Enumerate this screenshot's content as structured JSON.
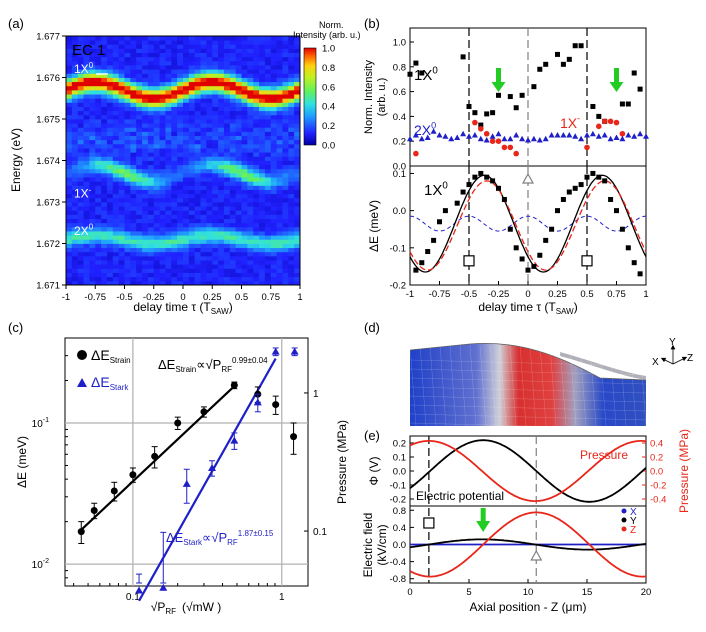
{
  "colors": {
    "black": "#000000",
    "blue": "#1f1fc8",
    "red": "#e8261a",
    "green": "#22cc22",
    "gray": "#808080",
    "grid": "#b0b0b0"
  },
  "panels": {
    "a": {
      "label": "(a)",
      "title": "EC 1",
      "ylabel": "Energy (eV)",
      "xlabel_main": "delay time τ (T",
      "xlabel_sub": "SAW",
      "xlabel_end": ")",
      "xlim": [
        -1,
        1
      ],
      "ylim": [
        1.671,
        1.677
      ],
      "xticks": [
        "-1",
        "-0.75",
        "-0.5",
        "-0.25",
        "0",
        "0.25",
        "0.5",
        "0.75",
        "1"
      ],
      "yticks": [
        "1.671",
        "1.672",
        "1.673",
        "1.674",
        "1.675",
        "1.676",
        "1.677"
      ],
      "colorbar_title_1": "Norm.",
      "colorbar_title_2": "Intensity (arb. u.)",
      "colorbar_ticks": [
        "1.0",
        "0.8",
        "0.6",
        "0.4",
        "0.2",
        "0.0"
      ],
      "line_labels": [
        {
          "base": "1X",
          "sup": "0",
          "energy": 1.6762
        },
        {
          "base": "1X",
          "sup": "-",
          "energy": 1.6732
        },
        {
          "base": "2X",
          "sup": "0",
          "energy": 1.6723
        }
      ]
    },
    "b": {
      "label": "(b)",
      "top": {
        "ylabel_1": "Norm. Intensity",
        "ylabel_2": "(arb. u.)",
        "ylim": [
          0.0,
          1.0
        ],
        "yticks": [
          "0.0",
          "0.2",
          "0.4",
          "0.6",
          "0.8",
          "1.0"
        ],
        "labels": [
          {
            "base": "1X",
            "sup": "0"
          },
          {
            "base": "2X",
            "sup": "0"
          },
          {
            "base": "1X",
            "sup": "-"
          }
        ]
      },
      "bottom": {
        "ylabel": "ΔE (meV)",
        "ylim": [
          -0.2,
          0.12
        ],
        "yticks": [
          "-0.2",
          "-0.1",
          "0.0",
          "0.1"
        ],
        "xticks": [
          "-1",
          "-0.75",
          "-0.5",
          "-0.25",
          "0",
          "0.25",
          "0.5",
          "0.75",
          "1"
        ],
        "label": {
          "base": "1X",
          "sup": "0"
        },
        "xlabel_main": "delay time τ (T",
        "xlabel_sub": "SAW",
        "xlabel_end": ")"
      }
    },
    "c": {
      "label": "(c)",
      "ylabel": "ΔE (meV)",
      "y2label": "Pressure (MPa)",
      "xlabel_main": "√P",
      "xlabel_sub": "RF",
      "xlabel_unit": "(√mW )",
      "xticks": [
        "0.1",
        "1"
      ],
      "yticks": [
        "10",
        "10",
        "10"
      ],
      "yticks_exp": [
        "-2",
        "-1",
        "0"
      ],
      "y2ticks": [
        "0.1",
        "1"
      ],
      "legend": [
        {
          "main": "ΔE",
          "sub": "Strain"
        },
        {
          "main": "ΔE",
          "sub": "Stark"
        }
      ],
      "fit_strain": {
        "main": "ΔE",
        "sub": "Strain",
        "prop": "∝√P",
        "sub2": "RF",
        "exp": "0.99±0.04"
      },
      "fit_stark": {
        "main": "ΔE",
        "sub": "Stark",
        "prop": "∝√P",
        "sub2": "RF",
        "exp": "1.87±0.15"
      }
    },
    "d": {
      "label": "(d)",
      "axes": [
        "Y",
        "X",
        "Z"
      ]
    },
    "e": {
      "label": "(e)",
      "top": {
        "ylabel": "Φ (V)",
        "y2label": "Pressure (MPa)",
        "yticks": [
          "0.2",
          "0.1",
          "0.0",
          "-0.1",
          "-0.2"
        ],
        "y2ticks": [
          "0.4",
          "0.2",
          "0.0",
          "-0.2",
          "-0.4"
        ],
        "pressure_label": "Pressure",
        "potential_label": "Electric potential"
      },
      "bottom": {
        "ylabel_1": "Electric field",
        "ylabel_2": "(kV/cm)",
        "yticks": [
          "0.8",
          "0.4",
          "0.0",
          "-0.4",
          "-0.8"
        ],
        "xticks": [
          "0",
          "5",
          "10",
          "15",
          "20"
        ],
        "legend": [
          "X",
          "Y",
          "Z"
        ],
        "xlabel": "Axial position - Z (μm)"
      }
    }
  },
  "chart_data": [
    {
      "type": "heatmap",
      "panel": "a",
      "title": "EC 1",
      "xlabel": "delay time τ (TSAW)",
      "ylabel": "Energy (eV)",
      "xlim": [
        -1,
        1
      ],
      "ylim": [
        1.671,
        1.677
      ],
      "zlim": [
        0.0,
        1.0
      ],
      "bands": [
        {
          "name": "1X0",
          "energy": 1.6757,
          "amplitude": 0.95,
          "modulation_eV": 0.0002
        },
        {
          "name": "1X-",
          "energy": 1.6737,
          "amplitude": 0.45,
          "modulation_eV": 0.0002
        },
        {
          "name": "2X0",
          "energy": 1.6721,
          "amplitude": 0.35,
          "modulation_eV": 0.0001
        }
      ]
    },
    {
      "type": "scatter",
      "panel": "b-top",
      "xlabel": "delay time τ (TSAW)",
      "ylabel": "Norm. Intensity (arb. u.)",
      "xlim": [
        -1,
        1
      ],
      "ylim": [
        0,
        1
      ],
      "series": [
        {
          "name": "1X0",
          "color": "#000000",
          "x": [
            -1.0,
            -0.95,
            -0.9,
            -0.55,
            -0.5,
            -0.45,
            -0.4,
            -0.35,
            -0.3,
            -0.25,
            -0.15,
            -0.1,
            -0.05,
            0.05,
            0.1,
            0.15,
            0.25,
            0.3,
            0.35,
            0.4,
            0.45,
            0.55,
            0.6,
            0.65,
            0.8,
            0.85,
            0.9,
            0.95
          ],
          "y": [
            0.74,
            0.83,
            0.75,
            0.88,
            0.48,
            0.43,
            0.33,
            0.42,
            0.43,
            0.57,
            0.56,
            0.47,
            0.57,
            0.64,
            0.78,
            0.82,
            0.9,
            0.82,
            0.86,
            0.97,
            0.97,
            0.48,
            0.4,
            0.36,
            0.5,
            0.5,
            0.75,
            0.62
          ]
        },
        {
          "name": "1X-",
          "color": "#e8261a",
          "x": [
            -0.95,
            -0.45,
            -0.4,
            -0.35,
            -0.3,
            -0.25,
            -0.2,
            -0.15,
            -0.1,
            0.5,
            0.6,
            0.65,
            0.7,
            0.75,
            0.8
          ],
          "y": [
            0.1,
            0.35,
            0.3,
            0.26,
            0.2,
            0.2,
            0.15,
            0.15,
            0.1,
            0.15,
            0.32,
            0.36,
            0.36,
            0.35,
            0.26
          ]
        },
        {
          "name": "2X0",
          "color": "#1f1fc8",
          "x": [
            -1.0,
            -0.95,
            -0.9,
            -0.85,
            -0.8,
            -0.75,
            -0.7,
            -0.65,
            -0.6,
            -0.55,
            -0.5,
            -0.45,
            -0.4,
            -0.35,
            -0.3,
            -0.25,
            -0.2,
            -0.15,
            -0.1,
            -0.05,
            0.0,
            0.05,
            0.1,
            0.15,
            0.2,
            0.25,
            0.3,
            0.35,
            0.4,
            0.45,
            0.5,
            0.55,
            0.6,
            0.65,
            0.7,
            0.75,
            0.8,
            0.85,
            0.9,
            0.95,
            1.0
          ],
          "y": [
            0.22,
            0.25,
            0.22,
            0.23,
            0.28,
            0.25,
            0.24,
            0.22,
            0.23,
            0.26,
            0.24,
            0.25,
            0.22,
            0.21,
            0.24,
            0.26,
            0.22,
            0.22,
            0.25,
            0.22,
            0.21,
            0.22,
            0.21,
            0.22,
            0.25,
            0.25,
            0.25,
            0.25,
            0.24,
            0.22,
            0.25,
            0.26,
            0.24,
            0.25,
            0.22,
            0.23,
            0.22,
            0.25,
            0.24,
            0.26,
            0.24
          ]
        }
      ]
    },
    {
      "type": "line",
      "panel": "b-bottom",
      "xlabel": "delay time τ (TSAW)",
      "ylabel": "ΔE (meV)",
      "xlim": [
        -1,
        1
      ],
      "ylim": [
        -0.2,
        0.12
      ],
      "series": [
        {
          "name": "1X0 data",
          "style": "squares",
          "x": [
            -0.95,
            -0.9,
            -0.85,
            -0.8,
            -0.75,
            -0.7,
            -0.6,
            -0.55,
            -0.5,
            -0.45,
            -0.4,
            -0.35,
            -0.3,
            -0.25,
            -0.2,
            -0.15,
            -0.1,
            -0.05,
            0.0,
            0.05,
            0.1,
            0.15,
            0.2,
            0.25,
            0.3,
            0.35,
            0.4,
            0.45,
            0.5,
            0.55,
            0.6,
            0.65,
            0.7,
            0.75,
            0.8,
            0.85,
            0.9,
            0.95
          ],
          "y": [
            -0.16,
            -0.14,
            -0.11,
            -0.08,
            -0.03,
            0.0,
            0.02,
            0.05,
            0.07,
            0.09,
            0.1,
            0.09,
            0.08,
            0.06,
            0.03,
            -0.05,
            -0.1,
            -0.13,
            -0.16,
            -0.15,
            -0.12,
            -0.08,
            -0.05,
            0.0,
            0.03,
            0.05,
            0.06,
            0.07,
            0.09,
            0.1,
            0.09,
            0.08,
            0.03,
            0.0,
            -0.05,
            -0.1,
            -0.14,
            -0.17
          ]
        },
        {
          "name": "sine fit",
          "color": "#000000",
          "amplitude": 0.13,
          "offset": -0.035,
          "period": 1.0,
          "phase_max_at": 0.63
        },
        {
          "name": "model (dashed)",
          "color": "#e8261a",
          "amplitude": 0.12,
          "offset": -0.04,
          "period": 1.0,
          "phase_max_at": 0.65
        },
        {
          "name": "Stark (dashed)",
          "color": "#1f1fc8",
          "amplitude": 0.02,
          "offset": -0.035,
          "period": 0.5,
          "phase_max_at": 0.0
        }
      ],
      "markers": {
        "vertical_dashed": [
          -0.5,
          0.0,
          0.5
        ],
        "squares_at": [
          [
            -0.5,
            -0.135
          ],
          [
            0.5,
            -0.135
          ]
        ],
        "triangle_at": [
          0.0,
          0.085
        ],
        "green_arrows_x": [
          -0.25,
          0.75
        ]
      }
    },
    {
      "type": "scatter",
      "panel": "c",
      "xscale": "log",
      "yscale": "log",
      "xlim": [
        0.035,
        1.5
      ],
      "ylim": [
        0.007,
        0.4
      ],
      "y2lim": [
        0.04,
        2.5
      ],
      "series": [
        {
          "name": "ΔE_Strain",
          "color": "#000000",
          "x": [
            0.045,
            0.055,
            0.075,
            0.1,
            0.14,
            0.2,
            0.3,
            0.48,
            0.69,
            0.91,
            1.2
          ],
          "y": [
            0.017,
            0.024,
            0.033,
            0.043,
            0.058,
            0.1,
            0.12,
            0.185,
            0.16,
            0.135,
            0.08
          ],
          "err": [
            0.003,
            0.003,
            0.005,
            0.005,
            0.01,
            0.01,
            0.01,
            0.01,
            0.02,
            0.02,
            0.02
          ]
        },
        {
          "name": "ΔE_Stark",
          "color": "#1f1fc8",
          "x": [
            0.11,
            0.16,
            0.23,
            0.34,
            0.48,
            0.69,
            0.91,
            1.22
          ],
          "y": [
            0.0065,
            0.0068,
            0.037,
            0.048,
            0.075,
            0.14,
            0.32,
            0.32
          ],
          "err": [
            0.002,
            0.01,
            0.01,
            0.006,
            0.01,
            0.02,
            0.02,
            0.02
          ]
        }
      ],
      "fits": [
        {
          "name": "strain fit",
          "slope": 0.99,
          "x": [
            0.045,
            0.5
          ]
        },
        {
          "name": "stark fit",
          "slope": 1.87,
          "x": [
            0.11,
            0.91
          ]
        }
      ]
    },
    {
      "type": "line",
      "panel": "e-top",
      "xlabel": "Axial position - Z (μm)",
      "ylabel": "Φ (V)",
      "y2label": "Pressure (MPa)",
      "xlim": [
        0,
        20
      ],
      "ylim": [
        -0.25,
        0.25
      ],
      "y2lim": [
        -0.5,
        0.5
      ],
      "series": [
        {
          "name": "Electric potential",
          "color": "#000000",
          "amplitude": 0.22,
          "period_um": 18,
          "max_at_um": 6.2
        },
        {
          "name": "Pressure",
          "color": "#e8261a",
          "amplitude": 0.43,
          "period_um": 18,
          "max_at_um": 1.6
        }
      ]
    },
    {
      "type": "line",
      "panel": "e-bottom",
      "xlabel": "Axial position - Z (μm)",
      "ylabel": "Electric field (kV/cm)",
      "xlim": [
        0,
        20
      ],
      "ylim": [
        -0.9,
        0.9
      ],
      "series": [
        {
          "name": "X",
          "color": "#1f1fc8",
          "value": 0.0
        },
        {
          "name": "Y",
          "color": "#000000",
          "amplitude": 0.12,
          "period_um": 18
        },
        {
          "name": "Z",
          "color": "#e8261a",
          "amplitude": 0.75,
          "period_um": 18,
          "max_at_um": 10.7
        }
      ],
      "markers": {
        "vertical_dashed_um": [
          1.6,
          10.7
        ],
        "green_arrow_um": 6.2
      }
    }
  ]
}
